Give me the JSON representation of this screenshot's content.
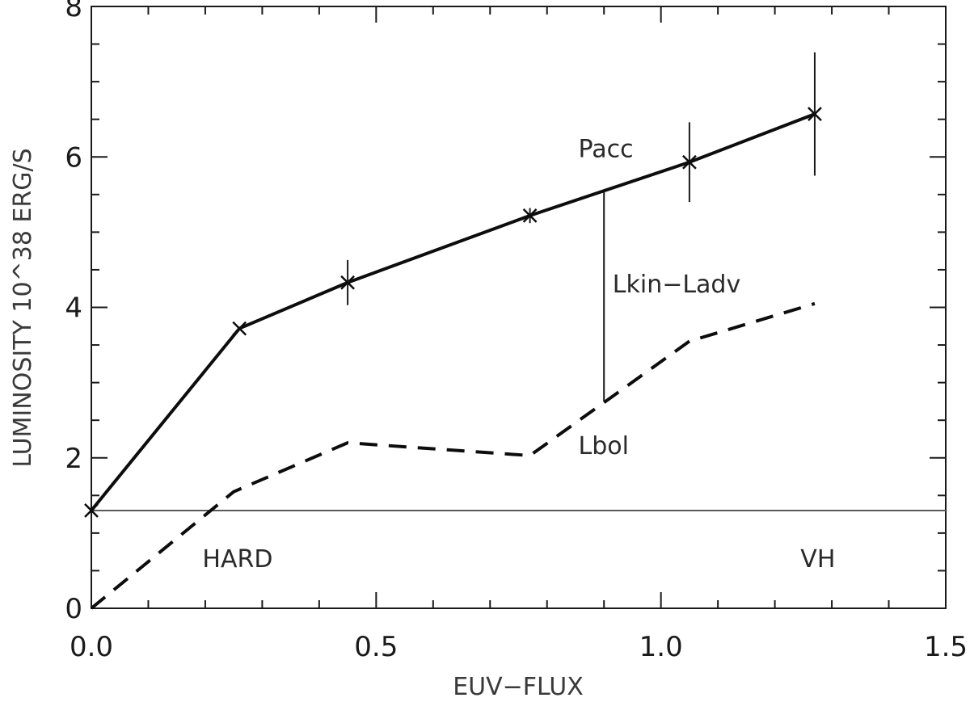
{
  "chart_data": {
    "type": "line",
    "xlabel": "EUV−FLUX",
    "ylabel": "LUMINOSITY 10^38 ERG/S",
    "xlim": [
      0,
      1.5
    ],
    "ylim": [
      0,
      8
    ],
    "x_ticks": [
      "0.0",
      "0.5",
      "1.0",
      "1.5"
    ],
    "y_ticks": [
      "0",
      "2",
      "4",
      "6",
      "8"
    ],
    "series": [
      {
        "name": "Pacc",
        "style": "solid",
        "x": [
          0.0,
          0.26,
          0.45,
          0.77,
          1.05,
          1.27
        ],
        "y": [
          1.3,
          3.72,
          4.33,
          5.22,
          5.93,
          6.57
        ],
        "yerr": [
          0,
          0,
          0.3,
          0.1,
          0.53,
          0.82
        ]
      },
      {
        "name": "Lbol",
        "style": "dashed",
        "x": [
          0.0,
          0.25,
          0.45,
          0.77,
          1.05,
          1.27
        ],
        "y": [
          0.0,
          1.55,
          2.2,
          2.03,
          3.55,
          4.05
        ]
      }
    ],
    "hline": {
      "y": 1.3
    },
    "segment": {
      "x": 0.9,
      "y1": 2.75,
      "y2": 5.53
    },
    "annotations": [
      {
        "text": "Pacc",
        "x": 0.855,
        "y": 6.0
      },
      {
        "text": "Lkin−Ladv",
        "x": 0.915,
        "y": 4.2
      },
      {
        "text": "Lbol",
        "x": 0.855,
        "y": 2.05
      },
      {
        "text": "HARD",
        "x": 0.195,
        "y": 0.55
      },
      {
        "text": "VH",
        "x": 1.245,
        "y": 0.55
      }
    ]
  }
}
